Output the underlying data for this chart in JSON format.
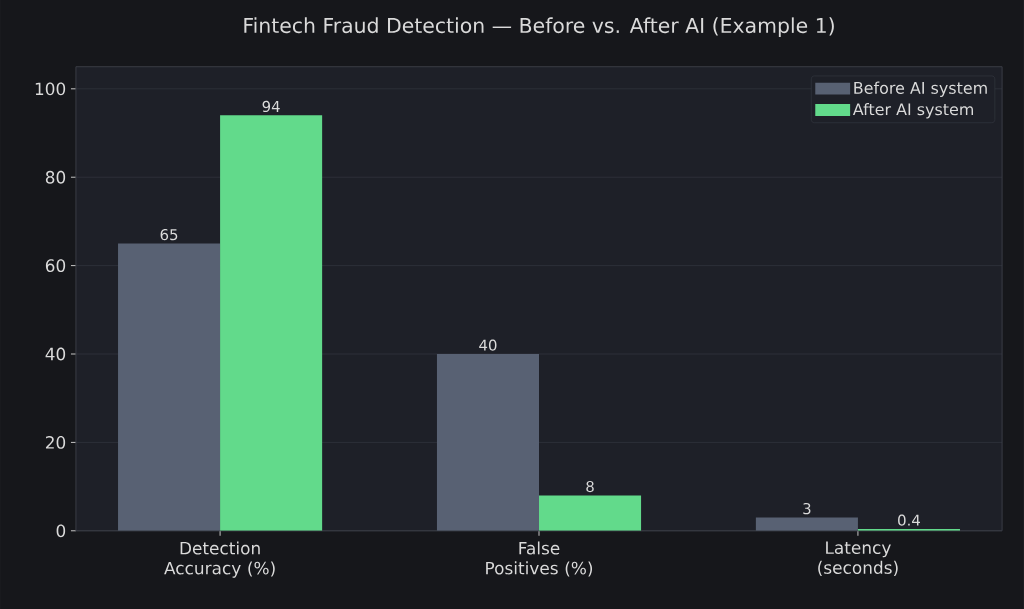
{
  "chart_data": {
    "type": "bar",
    "title": "Fintech Fraud Detection — Before vs. After AI (Example 1)",
    "categories": [
      "Detection Accuracy (%)",
      "False Positives (%)",
      "Latency (seconds)"
    ],
    "series": [
      {
        "name": "Before AI system",
        "color": "#586173",
        "values": [
          65,
          40,
          3
        ]
      },
      {
        "name": "After AI system",
        "color": "#62da8b",
        "values": [
          94,
          8,
          0.4
        ]
      }
    ],
    "ylim": [
      0,
      105
    ],
    "yticks": [
      0,
      20,
      40,
      60,
      80,
      100
    ],
    "grid": "y",
    "legend": "top right",
    "data_labels": true
  }
}
